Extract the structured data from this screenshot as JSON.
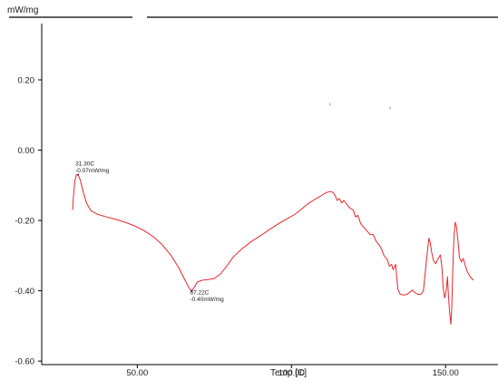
{
  "chart_data": {
    "type": "line",
    "ylabel": "mW/mg",
    "xlabel": "Temp  [C]",
    "xlim": [
      19,
      167
    ],
    "ylim": [
      -0.61,
      0.36
    ],
    "x_ticks": [
      {
        "value": 50,
        "label": "50.00"
      },
      {
        "value": 100,
        "label": "100.00"
      },
      {
        "value": 150,
        "label": "150.00"
      }
    ],
    "y_ticks": [
      {
        "value": 0.2,
        "label": "0.20"
      },
      {
        "value": 0.0,
        "label": "0.00"
      },
      {
        "value": -0.2,
        "label": "-0.20"
      },
      {
        "value": -0.4,
        "label": "-0.40"
      },
      {
        "value": -0.6,
        "label": "-0.60"
      }
    ],
    "grid": false,
    "series": [
      {
        "color": "#e8252b",
        "points": [
          [
            29.0,
            -0.17
          ],
          [
            29.3,
            -0.13
          ],
          [
            29.7,
            -0.09
          ],
          [
            30.2,
            -0.07
          ],
          [
            30.8,
            -0.07
          ],
          [
            31.5,
            -0.085
          ],
          [
            32.5,
            -0.12
          ],
          [
            33.5,
            -0.15
          ],
          [
            35.0,
            -0.173
          ],
          [
            37.0,
            -0.182
          ],
          [
            40.0,
            -0.19
          ],
          [
            43.0,
            -0.197
          ],
          [
            46.0,
            -0.205
          ],
          [
            49.0,
            -0.215
          ],
          [
            52.0,
            -0.228
          ],
          [
            55.0,
            -0.245
          ],
          [
            58.0,
            -0.268
          ],
          [
            61.0,
            -0.3
          ],
          [
            63.5,
            -0.335
          ],
          [
            65.5,
            -0.37
          ],
          [
            67.0,
            -0.395
          ],
          [
            67.7,
            -0.4
          ],
          [
            68.5,
            -0.39
          ],
          [
            69.5,
            -0.375
          ],
          [
            71.0,
            -0.37
          ],
          [
            73.0,
            -0.368
          ],
          [
            75.0,
            -0.365
          ],
          [
            77.0,
            -0.352
          ],
          [
            79.0,
            -0.33
          ],
          [
            81.0,
            -0.305
          ],
          [
            84.0,
            -0.28
          ],
          [
            87.0,
            -0.26
          ],
          [
            90.0,
            -0.243
          ],
          [
            93.0,
            -0.225
          ],
          [
            96.0,
            -0.208
          ],
          [
            99.0,
            -0.193
          ],
          [
            101.0,
            -0.183
          ],
          [
            103.0,
            -0.17
          ],
          [
            105.0,
            -0.155
          ],
          [
            107.0,
            -0.143
          ],
          [
            109.0,
            -0.133
          ],
          [
            110.5,
            -0.125
          ],
          [
            111.5,
            -0.12
          ],
          [
            112.5,
            -0.118
          ],
          [
            113.5,
            -0.12
          ],
          [
            114.2,
            -0.13
          ],
          [
            114.8,
            -0.143
          ],
          [
            115.5,
            -0.138
          ],
          [
            116.3,
            -0.15
          ],
          [
            117.0,
            -0.143
          ],
          [
            118.0,
            -0.155
          ],
          [
            119.0,
            -0.165
          ],
          [
            120.0,
            -0.17
          ],
          [
            120.8,
            -0.19
          ],
          [
            121.5,
            -0.185
          ],
          [
            122.5,
            -0.21
          ],
          [
            123.5,
            -0.22
          ],
          [
            124.5,
            -0.23
          ],
          [
            125.5,
            -0.24
          ],
          [
            126.5,
            -0.24
          ],
          [
            127.5,
            -0.26
          ],
          [
            128.5,
            -0.27
          ],
          [
            129.3,
            -0.283
          ],
          [
            130.0,
            -0.3
          ],
          [
            131.0,
            -0.31
          ],
          [
            131.8,
            -0.33
          ],
          [
            132.5,
            -0.325
          ],
          [
            133.0,
            -0.34
          ],
          [
            133.8,
            -0.325
          ],
          [
            134.5,
            -0.395
          ],
          [
            135.3,
            -0.41
          ],
          [
            136.5,
            -0.412
          ],
          [
            137.5,
            -0.41
          ],
          [
            138.5,
            -0.403
          ],
          [
            139.3,
            -0.398
          ],
          [
            140.0,
            -0.405
          ],
          [
            141.0,
            -0.41
          ],
          [
            142.0,
            -0.41
          ],
          [
            142.8,
            -0.4
          ],
          [
            143.5,
            -0.34
          ],
          [
            144.2,
            -0.28
          ],
          [
            144.6,
            -0.25
          ],
          [
            145.0,
            -0.262
          ],
          [
            145.5,
            -0.29
          ],
          [
            146.0,
            -0.312
          ],
          [
            146.8,
            -0.323
          ],
          [
            147.5,
            -0.31
          ],
          [
            148.3,
            -0.298
          ],
          [
            148.8,
            -0.33
          ],
          [
            149.2,
            -0.39
          ],
          [
            149.7,
            -0.42
          ],
          [
            150.2,
            -0.4
          ],
          [
            150.6,
            -0.36
          ],
          [
            150.9,
            -0.41
          ],
          [
            151.3,
            -0.46
          ],
          [
            151.7,
            -0.495
          ],
          [
            152.0,
            -0.45
          ],
          [
            152.3,
            -0.35
          ],
          [
            152.7,
            -0.25
          ],
          [
            153.1,
            -0.205
          ],
          [
            153.5,
            -0.215
          ],
          [
            154.0,
            -0.255
          ],
          [
            154.5,
            -0.305
          ],
          [
            155.1,
            -0.318
          ],
          [
            155.7,
            -0.308
          ],
          [
            156.3,
            -0.325
          ],
          [
            157.0,
            -0.345
          ],
          [
            158.0,
            -0.36
          ],
          [
            159.0,
            -0.37
          ]
        ]
      }
    ],
    "annotations": [
      {
        "x": 30.8,
        "y": -0.07,
        "lines": [
          "31.30C",
          "-0.07mW/mg"
        ]
      },
      {
        "x": 67.7,
        "y": -0.4,
        "lines": [
          "67.22C",
          "-0.40mW/mg"
        ]
      }
    ],
    "stray_marks": [
      {
        "x": 112.5,
        "y": 0.13
      },
      {
        "x": 132.0,
        "y": 0.12
      }
    ]
  }
}
